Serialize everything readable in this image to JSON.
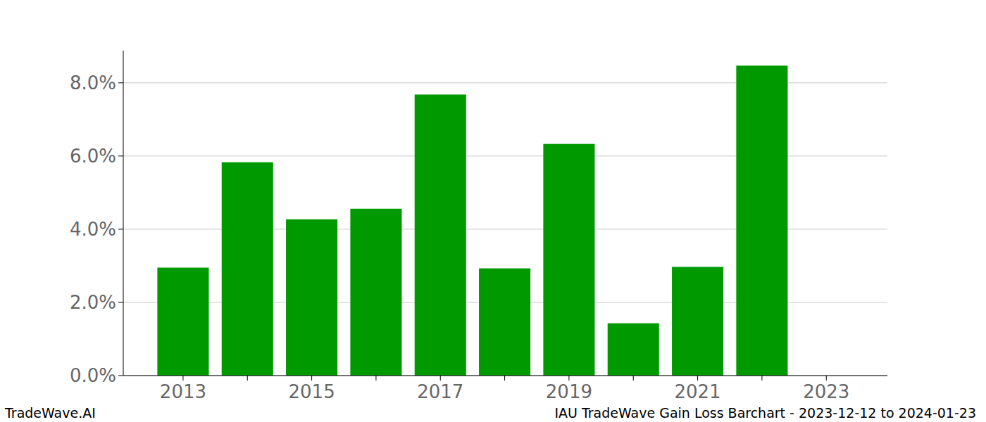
{
  "chart_data": {
    "type": "bar",
    "title": "IAU TradeWave Gain Loss Barchart - 2023-12-12 to 2024-01-23",
    "annotations": [
      "TradeWave.AI"
    ],
    "categories": [
      "2013",
      null,
      "2015",
      null,
      "2017",
      null,
      "2019",
      null,
      "2021",
      null,
      "2023"
    ],
    "values": [
      2.95,
      5.83,
      4.27,
      4.56,
      7.68,
      2.93,
      6.33,
      1.43,
      2.97,
      8.47,
      null
    ],
    "color": "#009900",
    "ylim": [
      0,
      8.88
    ],
    "yticks": [
      {
        "value": 0,
        "label": "0.0%"
      },
      {
        "value": 2,
        "label": "2.0%"
      },
      {
        "value": 4,
        "label": "4.0%"
      },
      {
        "value": 6,
        "label": "6.0%"
      },
      {
        "value": 8,
        "label": "8.0%"
      }
    ],
    "grid": true
  }
}
